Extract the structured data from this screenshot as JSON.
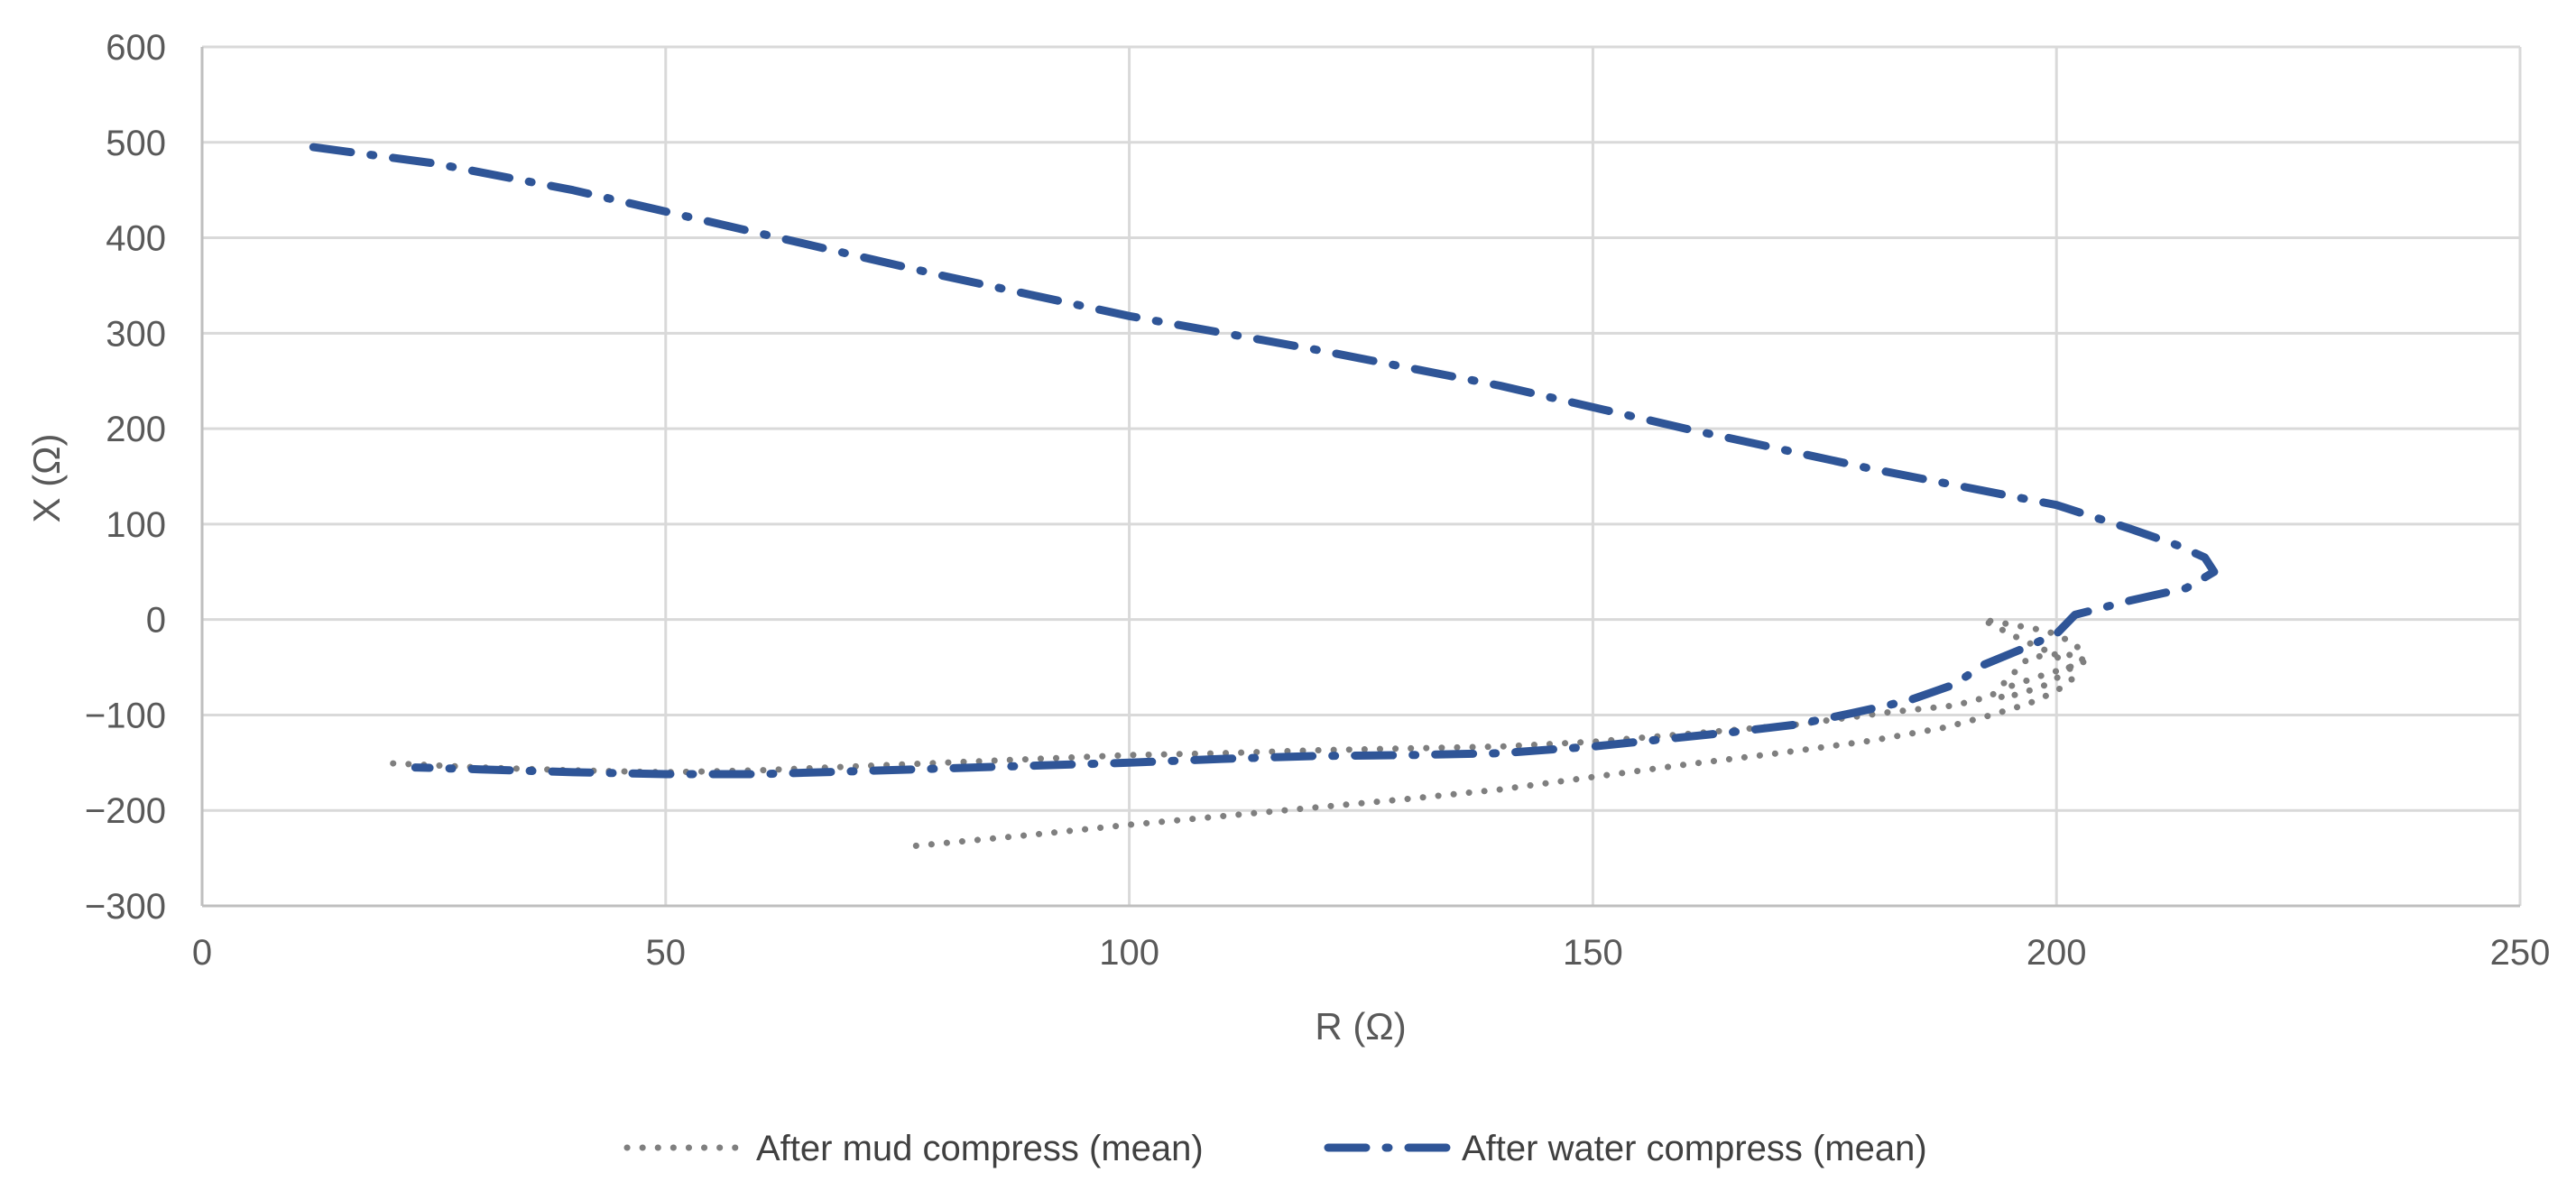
{
  "chart_data": {
    "type": "scatter",
    "title": "",
    "xlabel": "R (Ω)",
    "ylabel": "X (Ω)",
    "xlim": [
      0,
      250
    ],
    "ylim": [
      -300,
      600
    ],
    "xticks": [
      0,
      50,
      100,
      150,
      200,
      250
    ],
    "yticks": [
      -300,
      -200,
      -100,
      0,
      100,
      200,
      300,
      400,
      500,
      600
    ],
    "xtick_labels": [
      "0",
      "50",
      "100",
      "150",
      "200",
      "250"
    ],
    "ytick_labels": [
      "−300",
      "−200",
      "−100",
      "0",
      "100",
      "200",
      "300",
      "400",
      "500",
      "600"
    ],
    "grid": true,
    "legend_position": "bottom-center",
    "series": [
      {
        "name": "After mud compress (mean)",
        "color": "#7f7f7f",
        "style": "dotted",
        "points": [
          [
            77,
            -237
          ],
          [
            90,
            -225
          ],
          [
            100,
            -215
          ],
          [
            110,
            -206
          ],
          [
            120,
            -197
          ],
          [
            130,
            -188
          ],
          [
            140,
            -178
          ],
          [
            150,
            -165
          ],
          [
            160,
            -152
          ],
          [
            170,
            -140
          ],
          [
            180,
            -127
          ],
          [
            188,
            -113
          ],
          [
            193,
            -100
          ],
          [
            197,
            -88
          ],
          [
            200,
            -75
          ],
          [
            202,
            -60
          ],
          [
            201,
            -45
          ],
          [
            199,
            -33
          ],
          [
            196,
            -20
          ],
          [
            193,
            -5
          ],
          [
            192,
            0
          ],
          [
            195,
            -5
          ],
          [
            199,
            -12
          ],
          [
            202,
            -25
          ],
          [
            203,
            -40
          ],
          [
            201,
            -55
          ],
          [
            199,
            -68
          ],
          [
            196,
            -78
          ],
          [
            194,
            -82
          ],
          [
            195,
            -70
          ],
          [
            198,
            -60
          ],
          [
            203,
            -45
          ],
          [
            201,
            -35
          ],
          [
            197,
            -40
          ],
          [
            195,
            -60
          ],
          [
            193,
            -80
          ],
          [
            189,
            -90
          ],
          [
            182,
            -97
          ],
          [
            172,
            -110
          ],
          [
            160,
            -120
          ],
          [
            150,
            -128
          ],
          [
            140,
            -133
          ],
          [
            130,
            -135
          ],
          [
            120,
            -137
          ],
          [
            110,
            -140
          ],
          [
            100,
            -142
          ],
          [
            90,
            -146
          ],
          [
            80,
            -150
          ],
          [
            70,
            -154
          ],
          [
            60,
            -158
          ],
          [
            50,
            -160
          ],
          [
            40,
            -158
          ],
          [
            30,
            -155
          ],
          [
            19,
            -150
          ]
        ]
      },
      {
        "name": "After water compress (mean)",
        "color": "#2f5597",
        "style": "dash-dot",
        "points": [
          [
            12,
            495
          ],
          [
            25,
            478
          ],
          [
            40,
            450
          ],
          [
            60,
            405
          ],
          [
            80,
            360
          ],
          [
            100,
            318
          ],
          [
            120,
            283
          ],
          [
            140,
            245
          ],
          [
            160,
            200
          ],
          [
            180,
            158
          ],
          [
            200,
            120
          ],
          [
            208,
            95
          ],
          [
            213,
            78
          ],
          [
            216,
            65
          ],
          [
            217,
            50
          ],
          [
            214,
            33
          ],
          [
            208,
            20
          ],
          [
            202,
            5
          ],
          [
            200,
            -15
          ],
          [
            196,
            -32
          ],
          [
            192,
            -48
          ],
          [
            189,
            -68
          ],
          [
            184,
            -85
          ],
          [
            178,
            -98
          ],
          [
            172,
            -110
          ],
          [
            165,
            -118
          ],
          [
            158,
            -125
          ],
          [
            150,
            -133
          ],
          [
            140,
            -140
          ],
          [
            130,
            -142
          ],
          [
            120,
            -143
          ],
          [
            110,
            -146
          ],
          [
            100,
            -150
          ],
          [
            90,
            -153
          ],
          [
            80,
            -156
          ],
          [
            70,
            -159
          ],
          [
            60,
            -162
          ],
          [
            50,
            -162
          ],
          [
            40,
            -160
          ],
          [
            30,
            -157
          ],
          [
            23,
            -155
          ]
        ]
      }
    ]
  }
}
